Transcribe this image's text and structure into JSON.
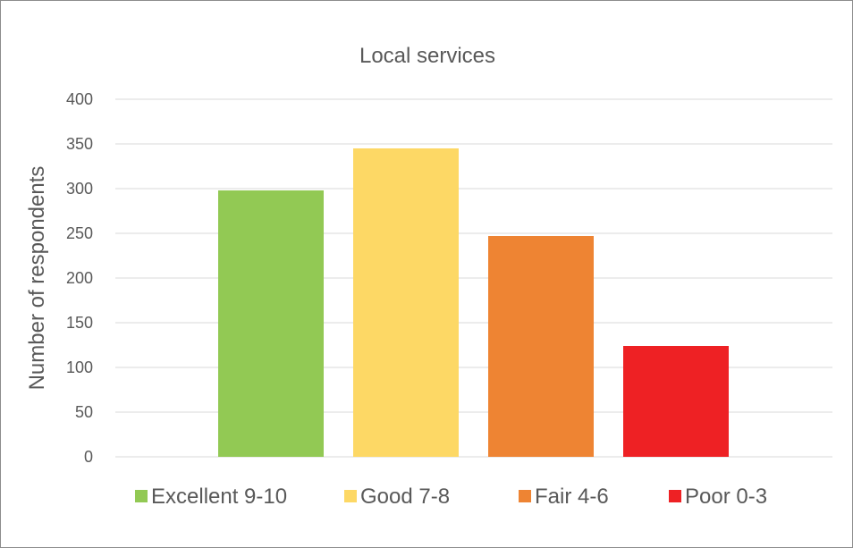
{
  "chart_data": {
    "type": "bar",
    "title": "Local services",
    "xlabel": "",
    "ylabel": "Number of respondents",
    "ylim": [
      0,
      400
    ],
    "ytick_step": 50,
    "grid": true,
    "legend_position": "bottom",
    "categories": [
      "Excellent 9-10",
      "Good 7-8",
      "Fair 4-6",
      "Poor 0-3"
    ],
    "series": [
      {
        "name": "Excellent 9-10",
        "values": [
          298,
          null,
          null,
          null
        ],
        "color": "#92C954"
      },
      {
        "name": "Good 7-8",
        "values": [
          null,
          345,
          null,
          null
        ],
        "color": "#FDD865"
      },
      {
        "name": "Fair 4-6",
        "values": [
          null,
          null,
          247,
          null
        ],
        "color": "#EE8433"
      },
      {
        "name": "Poor 0-3",
        "values": [
          null,
          null,
          null,
          124
        ],
        "color": "#EE2124"
      }
    ]
  }
}
